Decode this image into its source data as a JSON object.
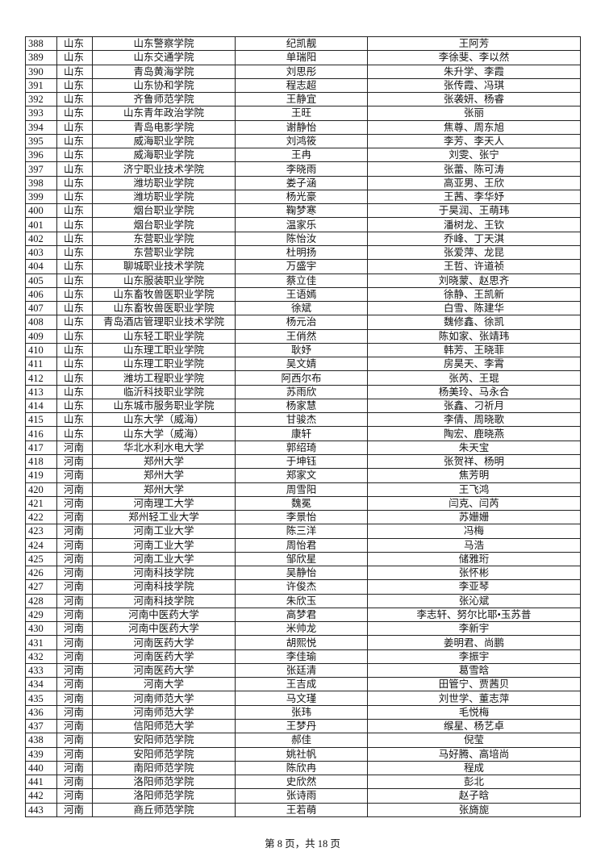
{
  "rows": [
    [
      "388",
      "山东",
      "山东警察学院",
      "纪凯靓",
      "王阿芳"
    ],
    [
      "389",
      "山东",
      "山东交通学院",
      "单瑞阳",
      "李徐斐、李以然"
    ],
    [
      "390",
      "山东",
      "青岛黄海学院",
      "刘思彤",
      "朱升学、李霞"
    ],
    [
      "391",
      "山东",
      "山东协和学院",
      "程志超",
      "张传霞、冯琪"
    ],
    [
      "392",
      "山东",
      "齐鲁师范学院",
      "王静宜",
      "张袭妍、杨睿"
    ],
    [
      "393",
      "山东",
      "山东青年政治学院",
      "王旺",
      "张丽"
    ],
    [
      "394",
      "山东",
      "青岛电影学院",
      "谢静怡",
      "焦尊、周东旭"
    ],
    [
      "395",
      "山东",
      "威海职业学院",
      "刘鸿筱",
      "李芳、李天人"
    ],
    [
      "396",
      "山东",
      "威海职业学院",
      "王冉",
      "刘雯、张宁"
    ],
    [
      "397",
      "山东",
      "济宁职业技术学院",
      "李晓雨",
      "张蕾、陈可涛"
    ],
    [
      "398",
      "山东",
      "潍坊职业学院",
      "娄子涵",
      "高亚男、王欣"
    ],
    [
      "399",
      "山东",
      "潍坊职业学院",
      "杨光豪",
      "王茜、李华妤"
    ],
    [
      "400",
      "山东",
      "烟台职业学院",
      "鞠梦寒",
      "于昊润、王萌玮"
    ],
    [
      "401",
      "山东",
      "烟台职业学院",
      "温家乐",
      "潘树龙、王钦"
    ],
    [
      "402",
      "山东",
      "东营职业学院",
      "陈怡汝",
      "乔峰、丁天淇"
    ],
    [
      "403",
      "山东",
      "东营职业学院",
      "杜明扬",
      "张爱萍、龙昆"
    ],
    [
      "404",
      "山东",
      "聊城职业技术学院",
      "万盛宇",
      "王哲、许道祯"
    ],
    [
      "405",
      "山东",
      "山东服装职业学院",
      "蔡立佳",
      "刘晓蒙、赵思齐"
    ],
    [
      "406",
      "山东",
      "山东畜牧兽医职业学院",
      "王语嫣",
      "徐静、王凯新"
    ],
    [
      "407",
      "山东",
      "山东畜牧兽医职业学院",
      "徐斌",
      "白雪、陈建华"
    ],
    [
      "408",
      "山东",
      "青岛酒店管理职业技术学院",
      "杨元治",
      "魏修鑫、徐凯"
    ],
    [
      "409",
      "山东",
      "山东轻工职业学院",
      "王俏然",
      "陈如家、张靖玮"
    ],
    [
      "410",
      "山东",
      "山东理工职业学院",
      "耿妤",
      "韩芳、王晓菲"
    ],
    [
      "411",
      "山东",
      "山东理工职业学院",
      "吴文婧",
      "房昊天、李霄"
    ],
    [
      "412",
      "山东",
      "潍坊工程职业学院",
      "阿西尔布",
      "张芮、王琨"
    ],
    [
      "413",
      "山东",
      "临沂科技职业学院",
      "苏雨欣",
      "杨美玲、马永合"
    ],
    [
      "414",
      "山东",
      "山东城市服务职业学院",
      "杨家慧",
      "张鑫、刁祈月"
    ],
    [
      "415",
      "山东",
      "山东大学（威海）",
      "甘骏杰",
      "李倩、周晓歌"
    ],
    [
      "416",
      "山东",
      "山东大学（威海）",
      "康轩",
      "陶宏、鹿晓燕"
    ],
    [
      "417",
      "河南",
      "华北水利水电大学",
      "郭绍琦",
      "朱天宝"
    ],
    [
      "418",
      "河南",
      "郑州大学",
      "于坤钰",
      "张贺祥、杨明"
    ],
    [
      "419",
      "河南",
      "郑州大学",
      "郑家文",
      "焦芳明"
    ],
    [
      "420",
      "河南",
      "郑州大学",
      "周雪阳",
      "王飞鸿"
    ],
    [
      "421",
      "河南",
      "河南理工大学",
      "魏冕",
      "闫克、闫芮"
    ],
    [
      "422",
      "河南",
      "郑州轻工业大学",
      "李景怡",
      "苏姗姗"
    ],
    [
      "423",
      "河南",
      "河南工业大学",
      "陈三洋",
      "冯梅"
    ],
    [
      "424",
      "河南",
      "河南工业大学",
      "周怡君",
      "马浩"
    ],
    [
      "425",
      "河南",
      "河南工业大学",
      "邹欣星",
      "储雅珩"
    ],
    [
      "426",
      "河南",
      "河南科技学院",
      "吴静怡",
      "张怀彬"
    ],
    [
      "427",
      "河南",
      "河南科技学院",
      "许俊杰",
      "李亚琴"
    ],
    [
      "428",
      "河南",
      "河南科技学院",
      "朱欣玉",
      "张沁斌"
    ],
    [
      "429",
      "河南",
      "河南中医药大学",
      "高梦君",
      "李志轩、努尔比耶•玉苏普"
    ],
    [
      "430",
      "河南",
      "河南中医药大学",
      "米帅龙",
      "李新宇"
    ],
    [
      "431",
      "河南",
      "河南医药大学",
      "胡熙悦",
      "姜明君、尚鹏"
    ],
    [
      "432",
      "河南",
      "河南医药大学",
      "李佳瑜",
      "李振宇"
    ],
    [
      "433",
      "河南",
      "河南医药大学",
      "张廷清",
      "葛雪晗"
    ],
    [
      "434",
      "河南",
      "河南大学",
      "王吉成",
      "田管宁、贾茜贝"
    ],
    [
      "435",
      "河南",
      "河南师范大学",
      "马文瑾",
      "刘世学、董志萍"
    ],
    [
      "436",
      "河南",
      "河南师范大学",
      "张玮",
      "毛悦梅"
    ],
    [
      "437",
      "河南",
      "信阳师范大学",
      "王梦丹",
      "缑星、杨艺卓"
    ],
    [
      "438",
      "河南",
      "安阳师范学院",
      "郝佳",
      "倪莹"
    ],
    [
      "439",
      "河南",
      "安阳师范学院",
      "姚社帆",
      "马好腾、高培尚"
    ],
    [
      "440",
      "河南",
      "南阳师范学院",
      "陈欣冉",
      "程成"
    ],
    [
      "441",
      "河南",
      "洛阳师范学院",
      "史欣然",
      "彭北"
    ],
    [
      "442",
      "河南",
      "洛阳师范学院",
      "张诗雨",
      "赵子晗"
    ],
    [
      "443",
      "河南",
      "商丘师范学院",
      "王若萌",
      "张旖旎"
    ]
  ],
  "footer": "第 8 页，共 18 页"
}
